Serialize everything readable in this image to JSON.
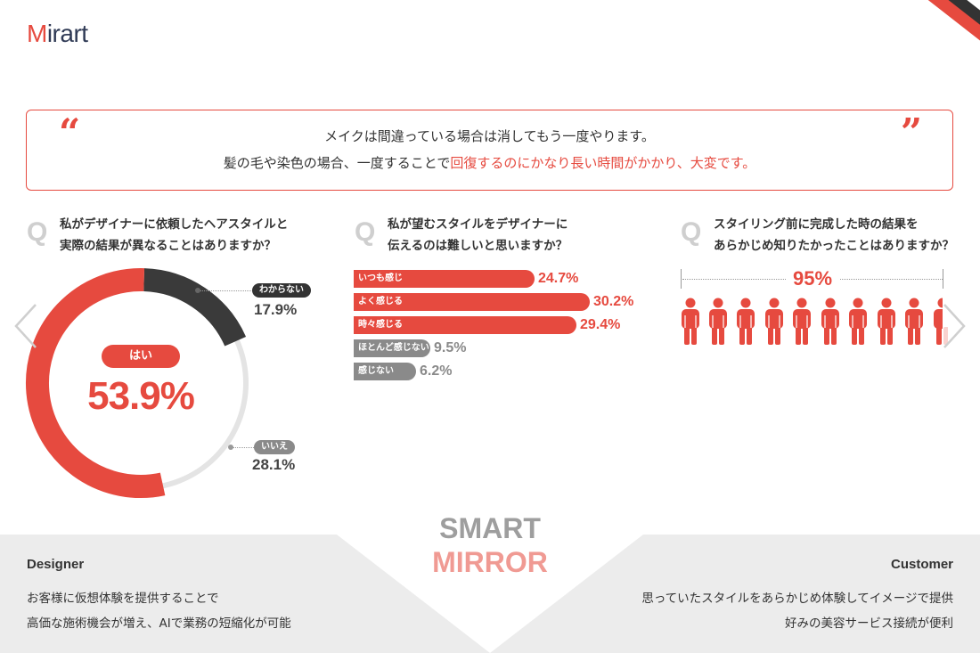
{
  "logo": {
    "first": "M",
    "rest": "irart"
  },
  "quote": {
    "open_mark": "“",
    "close_mark": "”",
    "line1": "メイクは間違っている場合は消してもう一度やります。",
    "line2_plain": "髪の毛や染色の場合、一度することで",
    "line2_highlight": "回復するのにかなり長い時間がかかり、大変です。"
  },
  "q1": {
    "letter": "Q",
    "line1": "私がデザイナーに依頼したヘアスタイルと",
    "line2": "実際の結果が異なることはありますか？",
    "yes_label": "はい",
    "yes_value": "53.9%",
    "unknown_label": "わからない",
    "unknown_value": "17.9%",
    "no_label": "いいえ",
    "no_value": "28.1%"
  },
  "q2": {
    "letter": "Q",
    "line1": "私が望むスタイルをデザイナーに",
    "line2": "伝えるのは難しいと思いますか？",
    "rows": [
      {
        "label": "いつも感じ",
        "value": "24.7%"
      },
      {
        "label": "よく感じる",
        "value": "30.2%"
      },
      {
        "label": "時々感じる",
        "value": "29.4%"
      },
      {
        "label": "ほとんど感じない",
        "value": "9.5%"
      },
      {
        "label": "感じない",
        "value": "6.2%"
      }
    ]
  },
  "q3": {
    "letter": "Q",
    "line1": "スタイリング前に完成した時の結果を",
    "line2": "あらかじめ知りたかったことはありますか？",
    "value": "95%",
    "value_fraction": 0.95
  },
  "center": {
    "word1": "SMART",
    "word2": "MIRROR"
  },
  "designer": {
    "title": "Designer",
    "line1": "お客様に仮想体験を提供することで",
    "line2": "高価な施術機会が増え、AIで業務の短縮化が可能"
  },
  "customer": {
    "title": "Customer",
    "line1": "思っていたスタイルをあらかじめ体験してイメージで提供",
    "line2": "好みの美容サービス接続が便利"
  },
  "colors": {
    "accent": "#e64a3f",
    "dark": "#333333",
    "gray": "#8a8a8a",
    "light_gray": "#eeeeee"
  },
  "icons": [
    "left-arrow-icon",
    "right-arrow-icon",
    "person-icon",
    "quote-open-icon",
    "quote-close-icon"
  ]
}
